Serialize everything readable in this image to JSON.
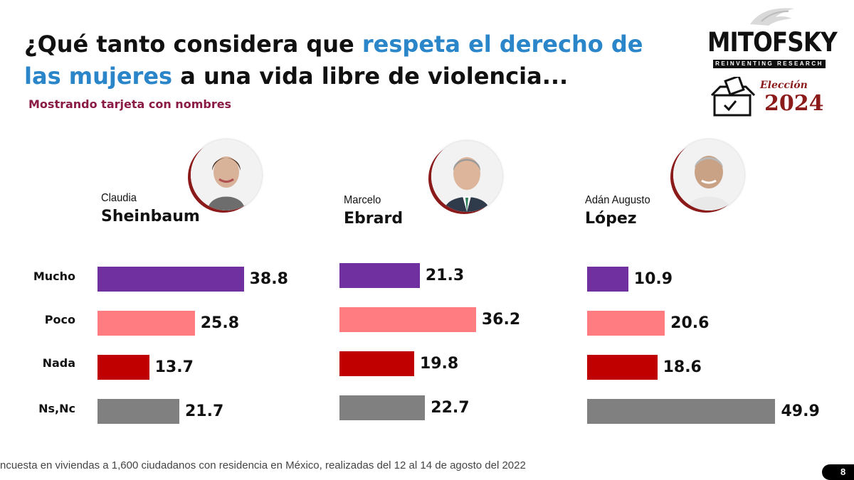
{
  "title": {
    "part1": "¿Qué tanto considera que ",
    "highlight1": "respeta el derecho de",
    "highlight2": "las mujeres",
    "part2": " a una vida libre de violencia..."
  },
  "subtitle": "Mostrando tarjeta con nombres",
  "logo": {
    "brand": "MITOFSKY",
    "tagline": "REINVENTING RESEARCH",
    "election_word": "Elección",
    "election_year": "2024"
  },
  "footnote": "ncuesta en viviendas a 1,600 ciudadanos con residencia en México, realizadas del 12 al 14 de agosto del 2022",
  "page_number": "8",
  "colors": {
    "title_highlight": "#2a86c9",
    "subtitle": "#8a1b45",
    "Mucho": "#7030a0",
    "Poco": "#ff7c80",
    "Nada": "#c00000",
    "Ns,Nc": "#808080"
  },
  "chart_data": {
    "type": "bar",
    "orientation": "horizontal",
    "categories": [
      "Mucho",
      "Poco",
      "Nada",
      "Ns,Nc"
    ],
    "panels": [
      {
        "first": "Claudia",
        "last": "Sheinbaum",
        "values": [
          38.8,
          25.8,
          13.7,
          21.7
        ]
      },
      {
        "first": "Marcelo",
        "last": "Ebrard",
        "values": [
          21.3,
          36.2,
          19.8,
          22.7
        ]
      },
      {
        "first": "Adán Augusto",
        "last": "López",
        "values": [
          10.9,
          20.6,
          18.6,
          49.9
        ]
      }
    ],
    "value_labels": [
      [
        "38.8",
        "25.8",
        "13.7",
        "21.7"
      ],
      [
        "21.3",
        "36.2",
        "19.8",
        "22.7"
      ],
      [
        "10.9",
        "20.6",
        "18.6",
        "49.9"
      ]
    ]
  }
}
